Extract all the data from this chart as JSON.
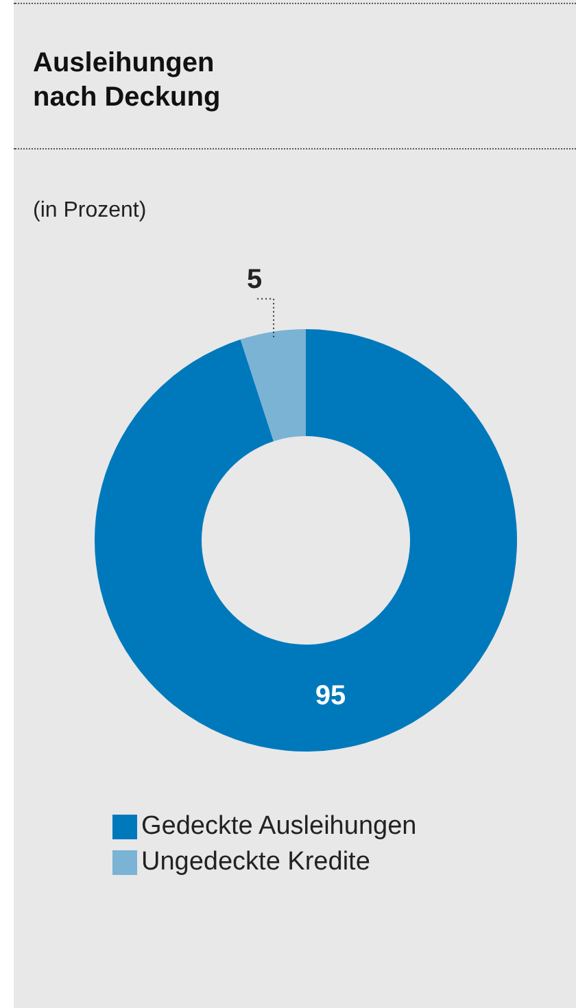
{
  "chart_data": {
    "type": "donut",
    "title": "Ausleihungen\nnach Deckung",
    "subtitle": "(in Prozent)",
    "categories": [
      "Gedeckte Ausleihungen",
      "Ungedeckte Kredite"
    ],
    "values": [
      95,
      5
    ],
    "colors": [
      "#0079bc",
      "#7ab3d4"
    ],
    "data_labels": true,
    "legend": "bottom"
  }
}
